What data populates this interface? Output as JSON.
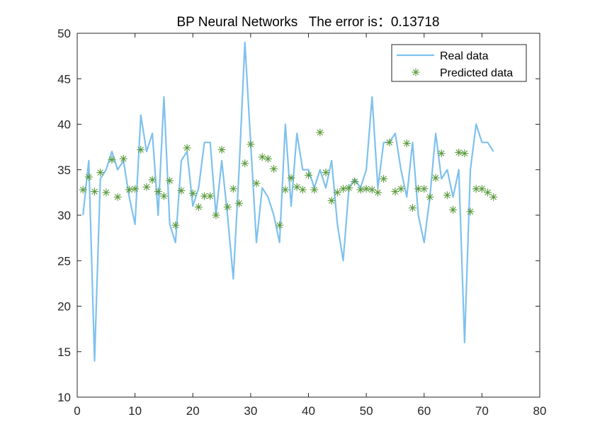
{
  "chart_data": {
    "type": "line",
    "title": "BP Neural Networks   The error is：0.13718",
    "xlabel": "",
    "ylabel": "",
    "xlim": [
      0,
      80
    ],
    "ylim": [
      10,
      50
    ],
    "xticks": [
      0,
      10,
      20,
      30,
      40,
      50,
      60,
      70,
      80
    ],
    "yticks": [
      10,
      15,
      20,
      25,
      30,
      35,
      40,
      45,
      50
    ],
    "grid": false,
    "legend_position": "top-right",
    "x": [
      1,
      2,
      3,
      4,
      5,
      6,
      7,
      8,
      9,
      10,
      11,
      12,
      13,
      14,
      15,
      16,
      17,
      18,
      19,
      20,
      21,
      22,
      23,
      24,
      25,
      26,
      27,
      28,
      29,
      30,
      31,
      32,
      33,
      34,
      35,
      36,
      37,
      38,
      39,
      40,
      41,
      42,
      43,
      44,
      45,
      46,
      47,
      48,
      49,
      50,
      51,
      52,
      53,
      54,
      55,
      56,
      57,
      58,
      59,
      60,
      61,
      62,
      63,
      64,
      65,
      66,
      67,
      68,
      69,
      70,
      71,
      72
    ],
    "series": [
      {
        "name": "Real data",
        "style": "line",
        "color": "#7ec1ee",
        "values": [
          30,
          36,
          14,
          34,
          35,
          37,
          35,
          36,
          32,
          29,
          41,
          37,
          39,
          30,
          43,
          29,
          27,
          36,
          37,
          31,
          33,
          38,
          38,
          30,
          36,
          30,
          23,
          35,
          49,
          38,
          27,
          33,
          32,
          30,
          27,
          40,
          31,
          39,
          35,
          35,
          33,
          35,
          33,
          36,
          29,
          25,
          33,
          34,
          33,
          35,
          43,
          33,
          38,
          38,
          39,
          35,
          32,
          38,
          30,
          27,
          32,
          39,
          34,
          35,
          32,
          35,
          16,
          35,
          40,
          38,
          38,
          37
        ]
      },
      {
        "name": "Predicted data",
        "style": "marker",
        "marker": "*",
        "color": "#5a9a3c",
        "values": [
          32.8,
          34.2,
          32.6,
          34.7,
          32.5,
          36.1,
          32.0,
          36.2,
          32.8,
          32.9,
          37.2,
          33.1,
          33.9,
          32.6,
          32.1,
          33.8,
          28.9,
          32.7,
          37.4,
          32.4,
          30.9,
          32.1,
          32.1,
          30.0,
          37.2,
          30.9,
          32.9,
          31.3,
          35.7,
          37.8,
          33.5,
          36.4,
          36.2,
          35.1,
          28.9,
          32.8,
          34.1,
          33.1,
          32.8,
          34.4,
          32.8,
          39.1,
          34.7,
          31.6,
          32.5,
          32.9,
          33.0,
          33.7,
          32.8,
          32.9,
          32.8,
          32.5,
          34.0,
          38.0,
          32.6,
          32.9,
          37.9,
          30.8,
          32.9,
          32.9,
          32.0,
          34.1,
          36.8,
          32.2,
          30.6,
          36.9,
          36.8,
          30.4,
          32.9,
          32.9,
          32.5,
          32.0
        ]
      }
    ]
  }
}
